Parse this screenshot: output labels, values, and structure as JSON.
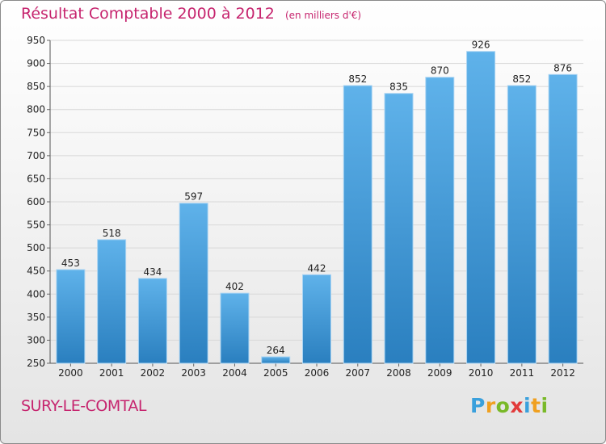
{
  "title": "Résultat Comptable 2000 à 2012",
  "subtitle": "(en milliers d'€)",
  "commune": "SURY-LE-COMTAL",
  "logo": {
    "text": "Proxiti",
    "letters": [
      {
        "char": "P",
        "color": "#3aa0dc"
      },
      {
        "char": "r",
        "color": "#f0a020"
      },
      {
        "char": "o",
        "color": "#79b928"
      },
      {
        "char": "x",
        "color": "#e23b3b"
      },
      {
        "char": "i",
        "color": "#3aa0dc"
      },
      {
        "char": "t",
        "color": "#f0a020"
      },
      {
        "char": "i",
        "color": "#79b928"
      }
    ]
  },
  "colors": {
    "accent": "#c6246e",
    "bar_top": "#5fb2ea",
    "bar_bottom": "#2a7fbf",
    "grid": "#d8d8d8"
  },
  "chart_data": {
    "type": "bar",
    "title": "Résultat Comptable 2000 à 2012",
    "subtitle": "(en milliers d'€)",
    "categories": [
      "2000",
      "2001",
      "2002",
      "2003",
      "2004",
      "2005",
      "2006",
      "2007",
      "2008",
      "2009",
      "2010",
      "2011",
      "2012"
    ],
    "values": [
      453,
      518,
      434,
      597,
      402,
      264,
      442,
      852,
      835,
      870,
      926,
      852,
      876
    ],
    "ylim": [
      250,
      950
    ],
    "yticks": [
      250,
      300,
      350,
      400,
      450,
      500,
      550,
      600,
      650,
      700,
      750,
      800,
      850,
      900,
      950
    ],
    "grid": true,
    "data_labels": true
  }
}
